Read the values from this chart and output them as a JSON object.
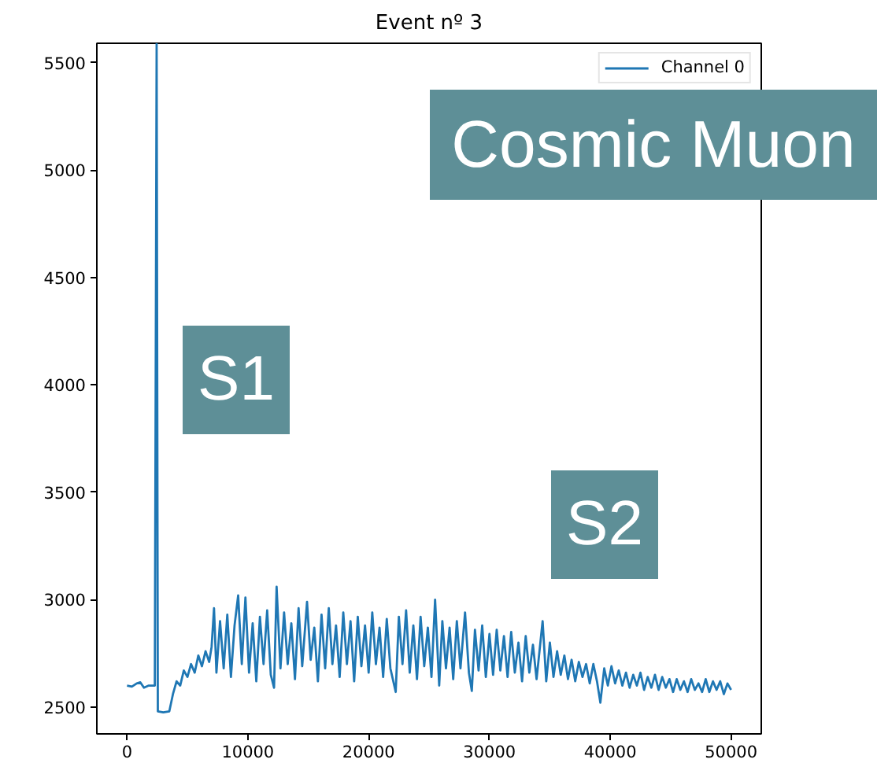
{
  "chart_data": {
    "type": "line",
    "title": "Event nº 3",
    "x": [
      0,
      400,
      800,
      1100,
      1400,
      1800,
      2300,
      2450,
      2550,
      3000,
      3500,
      3800,
      4100,
      4400,
      4700,
      5000,
      5300,
      5600,
      5900,
      6200,
      6500,
      6800,
      7000,
      7200,
      7400,
      7700,
      8000,
      8300,
      8600,
      8900,
      9200,
      9500,
      9800,
      10100,
      10400,
      10700,
      11000,
      11300,
      11600,
      11900,
      12170,
      12380,
      12700,
      13000,
      13300,
      13600,
      13900,
      14200,
      14500,
      14900,
      15200,
      15500,
      15800,
      16100,
      16400,
      16700,
      17000,
      17300,
      17600,
      17900,
      18200,
      18500,
      18800,
      19100,
      19400,
      19700,
      20000,
      20300,
      20600,
      20900,
      21200,
      21500,
      21800,
      22240,
      22500,
      22800,
      23100,
      23400,
      23700,
      24000,
      24300,
      24600,
      24900,
      25200,
      25500,
      25840,
      26100,
      26400,
      26700,
      27000,
      27300,
      27600,
      27980,
      28300,
      28540,
      28800,
      29100,
      29400,
      29700,
      30000,
      30300,
      30600,
      30900,
      31200,
      31500,
      31800,
      32100,
      32400,
      32700,
      33000,
      33300,
      33600,
      33900,
      34400,
      34700,
      35000,
      35300,
      35600,
      35900,
      36200,
      36500,
      36800,
      37100,
      37400,
      37700,
      38000,
      38300,
      38600,
      38900,
      39180,
      39500,
      39800,
      40100,
      40400,
      40700,
      41000,
      41300,
      41600,
      41900,
      42200,
      42500,
      42800,
      43100,
      43400,
      43700,
      44000,
      44300,
      44600,
      44900,
      45200,
      45500,
      45800,
      46100,
      46400,
      46700,
      47000,
      47300,
      47600,
      47900,
      48200,
      48500,
      48800,
      49100,
      49400,
      49700,
      50000
    ],
    "series": [
      {
        "name": "Channel 0",
        "color": "#1f77b4",
        "values": [
          2600,
          2595,
          2610,
          2615,
          2590,
          2600,
          2600,
          5590,
          2480,
          2475,
          2480,
          2560,
          2620,
          2600,
          2670,
          2640,
          2700,
          2660,
          2740,
          2690,
          2760,
          2710,
          2780,
          2960,
          2660,
          2900,
          2680,
          2930,
          2640,
          2880,
          3020,
          2700,
          3010,
          2660,
          2890,
          2620,
          2920,
          2700,
          2950,
          2650,
          2590,
          3060,
          2680,
          2940,
          2700,
          2890,
          2630,
          2960,
          2690,
          2990,
          2720,
          2870,
          2620,
          2930,
          2680,
          2960,
          2700,
          2880,
          2640,
          2940,
          2700,
          2900,
          2620,
          2920,
          2690,
          2880,
          2660,
          2940,
          2700,
          2870,
          2640,
          2910,
          2680,
          2570,
          2920,
          2700,
          2950,
          2660,
          2880,
          2630,
          2920,
          2690,
          2870,
          2640,
          3000,
          2600,
          2900,
          2680,
          2870,
          2630,
          2900,
          2680,
          2940,
          2660,
          2575,
          2860,
          2670,
          2880,
          2640,
          2840,
          2650,
          2860,
          2670,
          2830,
          2640,
          2850,
          2660,
          2800,
          2620,
          2830,
          2660,
          2790,
          2630,
          2900,
          2620,
          2800,
          2640,
          2760,
          2650,
          2740,
          2630,
          2720,
          2620,
          2710,
          2640,
          2700,
          2610,
          2700,
          2620,
          2520,
          2680,
          2600,
          2690,
          2610,
          2670,
          2600,
          2660,
          2590,
          2650,
          2600,
          2660,
          2580,
          2640,
          2590,
          2650,
          2580,
          2640,
          2590,
          2630,
          2570,
          2630,
          2580,
          2620,
          2570,
          2630,
          2580,
          2610,
          2570,
          2630,
          2570,
          2620,
          2580,
          2620,
          2560,
          2610,
          2580
        ]
      }
    ],
    "xlim": [
      -2500,
      52500
    ],
    "ylim": [
      2375,
      5590
    ],
    "xticks": [
      0,
      10000,
      20000,
      30000,
      40000,
      50000
    ],
    "yticks": [
      2500,
      3000,
      3500,
      4000,
      4500,
      5000,
      5500
    ],
    "grid": false,
    "legend": "top right",
    "annotations": [
      "Cosmic Muon",
      "S1",
      "S2"
    ]
  }
}
